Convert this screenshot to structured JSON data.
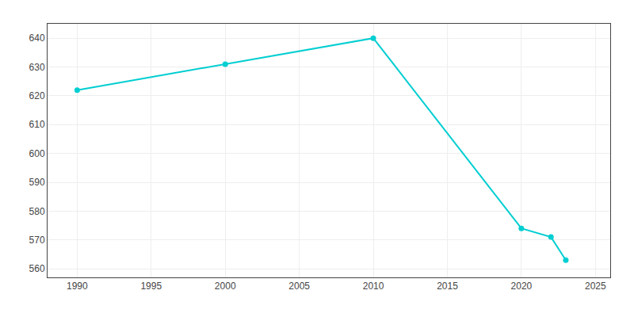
{
  "chart_data": {
    "type": "line",
    "x": [
      1990,
      2000,
      2010,
      2020,
      2022,
      2023
    ],
    "values": [
      622,
      631,
      640,
      574,
      571,
      563
    ],
    "color": "#00CED1",
    "marker": "circle",
    "xlim": [
      1988,
      2026
    ],
    "ylim": [
      557,
      645
    ],
    "xticks": [
      1990,
      1995,
      2000,
      2005,
      2010,
      2015,
      2020,
      2025
    ],
    "yticks": [
      560,
      570,
      580,
      590,
      600,
      610,
      620,
      630,
      640
    ],
    "grid": true
  }
}
